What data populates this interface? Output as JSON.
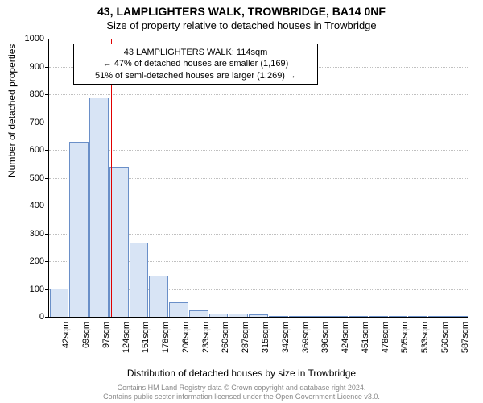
{
  "title_line1": "43, LAMPLIGHTERS WALK, TROWBRIDGE, BA14 0NF",
  "title_line2": "Size of property relative to detached houses in Trowbridge",
  "ylabel": "Number of detached properties",
  "xlabel": "Distribution of detached houses by size in Trowbridge",
  "footer_line1": "Contains HM Land Registry data © Crown copyright and database right 2024.",
  "footer_line2": "Contains public sector information licensed under the Open Government Licence v3.0.",
  "annotation": {
    "line1": "43 LAMPLIGHTERS WALK: 114sqm",
    "line2": "← 47% of detached houses are smaller (1,169)",
    "line3": "51% of semi-detached houses are larger (1,269) →"
  },
  "chart": {
    "type": "histogram",
    "ylim": [
      0,
      1000
    ],
    "ytick_step": 100,
    "bar_fill": "#d8e4f5",
    "bar_stroke": "#6a8fc8",
    "grid_color": "#c0c0c0",
    "marker_color": "#e00000",
    "background": "#ffffff",
    "font_family": "Arial",
    "title_fontsize": 14,
    "label_fontsize": 12,
    "tick_fontsize": 11,
    "x_categories": [
      "42sqm",
      "69sqm",
      "97sqm",
      "124sqm",
      "151sqm",
      "178sqm",
      "206sqm",
      "233sqm",
      "260sqm",
      "287sqm",
      "315sqm",
      "342sqm",
      "369sqm",
      "396sqm",
      "424sqm",
      "451sqm",
      "478sqm",
      "505sqm",
      "533sqm",
      "560sqm",
      "587sqm"
    ],
    "values": [
      100,
      625,
      785,
      535,
      265,
      145,
      50,
      20,
      10,
      10,
      5,
      0,
      0,
      0,
      0,
      0,
      0,
      0,
      0,
      0,
      0
    ],
    "marker_value_sqm": 114,
    "marker_bin_index": 2.6
  }
}
